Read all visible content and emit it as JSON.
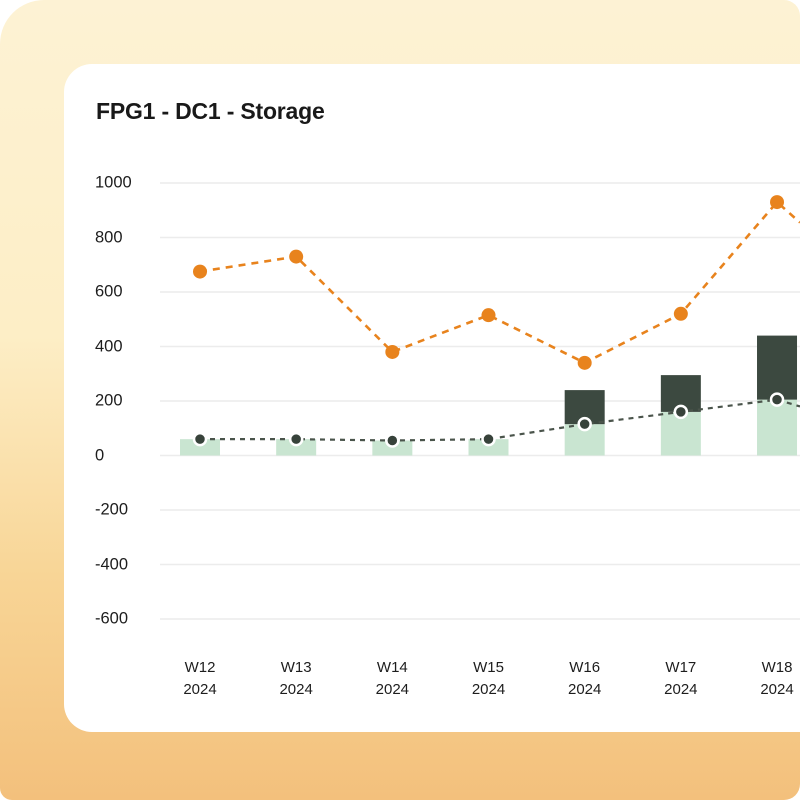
{
  "page": {
    "title": "FPG1 - DC1 - Storage"
  },
  "colors": {
    "background_gradient_top": "#fdf2d4",
    "background_gradient_bottom": "#f3c07c",
    "card": "#ffffff",
    "gridline": "#ececec",
    "text": "#1d1d1d",
    "bar_light_green": "#c9e5d1",
    "bar_dark_green": "#3c4940",
    "line_dark": "#4a544b",
    "marker_dark": "#37423a",
    "line_orange": "#e8831d"
  },
  "chart_data": {
    "type": "bar",
    "subtype": "stacked bars with two dashed overlay lines",
    "title": "FPG1 - DC1 - Storage",
    "categories": [
      "W12 2024",
      "W13 2024",
      "W14 2024",
      "W15 2024",
      "W16 2024",
      "W17 2024",
      "W18 2024"
    ],
    "y_ticks": [
      1000,
      800,
      600,
      400,
      200,
      0,
      "-200",
      "-400",
      "-600"
    ],
    "ylim": [
      -700,
      1080
    ],
    "grid": true,
    "legend": "none",
    "xlabel": "",
    "ylabel": "",
    "series": [
      {
        "name": "storage-lower-bar",
        "type": "bar",
        "stack": "storage",
        "color": "#c9e5d1",
        "values": [
          60,
          60,
          55,
          60,
          115,
          160,
          205
        ]
      },
      {
        "name": "storage-upper-bar",
        "type": "bar",
        "stack": "storage",
        "color": "#3c4940",
        "values": [
          0,
          0,
          0,
          0,
          125,
          135,
          235
        ],
        "stack_totals": [
          60,
          60,
          55,
          60,
          240,
          295,
          440
        ]
      },
      {
        "name": "dark-dashed-line",
        "type": "line",
        "style": "dashed",
        "color": "#4a544b",
        "marker_fill": "#37423a",
        "marker_stroke": "#ffffff",
        "values": [
          60,
          60,
          55,
          60,
          115,
          160,
          205
        ],
        "edge_exit_value": 180
      },
      {
        "name": "orange-dashed-line",
        "type": "line",
        "style": "dashed",
        "color": "#e8831d",
        "marker_fill": "#e8831d",
        "marker_stroke": "none",
        "values": [
          675,
          730,
          380,
          515,
          340,
          520,
          930
        ],
        "edge_exit_value": 855
      }
    ]
  }
}
